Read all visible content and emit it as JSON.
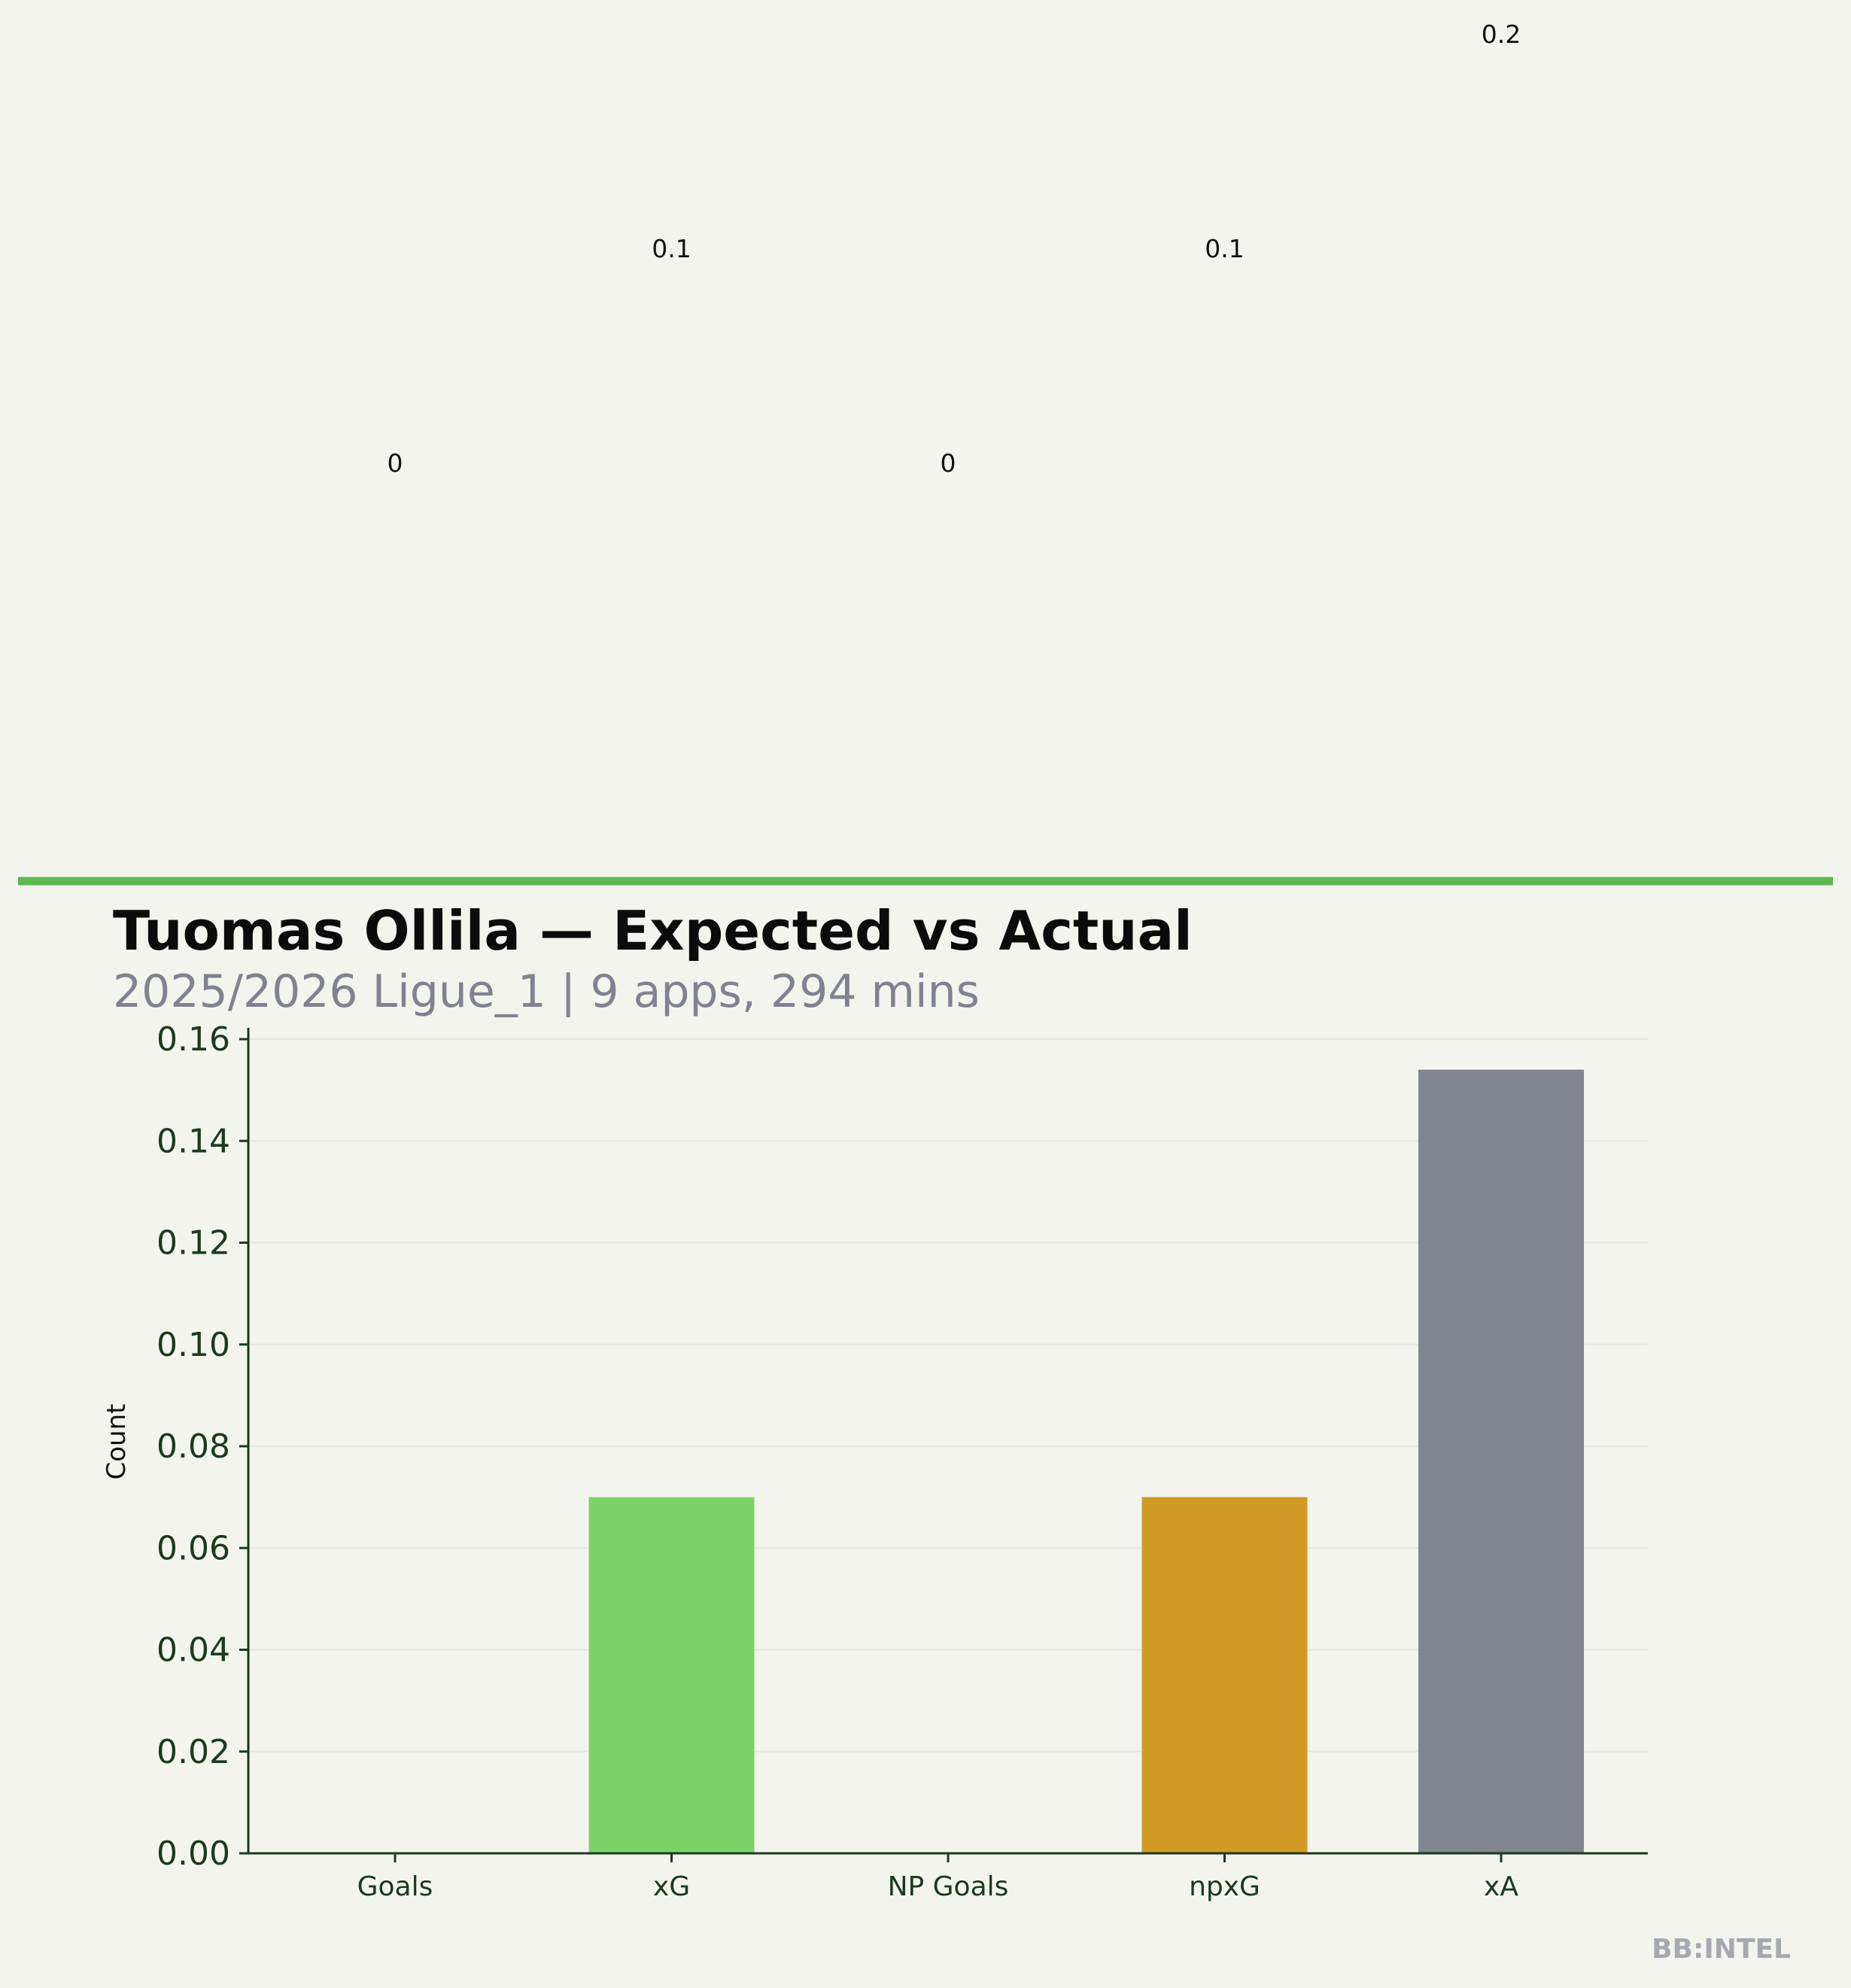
{
  "chart_data": {
    "type": "bar",
    "title": "Tuomas Ollila — Expected vs Actual",
    "subtitle": "2025/2026 Ligue_1 | 9 apps, 294 mins",
    "ylabel": "Count",
    "xlabel": "",
    "categories": [
      "Goals",
      "xG",
      "NP Goals",
      "npxG",
      "xA"
    ],
    "values": [
      0,
      0.07,
      0,
      0.07,
      0.154
    ],
    "value_labels": [
      "0",
      "0.1",
      "0",
      "0.1",
      "0.2"
    ],
    "ylim": [
      0,
      0.16
    ],
    "yticks": [
      "0.00",
      "0.02",
      "0.04",
      "0.06",
      "0.08",
      "0.10",
      "0.12",
      "0.14",
      "0.16"
    ],
    "colors": [
      "#5cb84f",
      "#7dd267",
      "#5cb84f",
      "#d19a24",
      "#80858f"
    ],
    "grid": true,
    "legend": "none",
    "accent_color": "#5cb84f"
  },
  "branding": {
    "watermark": "BB:INTEL"
  }
}
